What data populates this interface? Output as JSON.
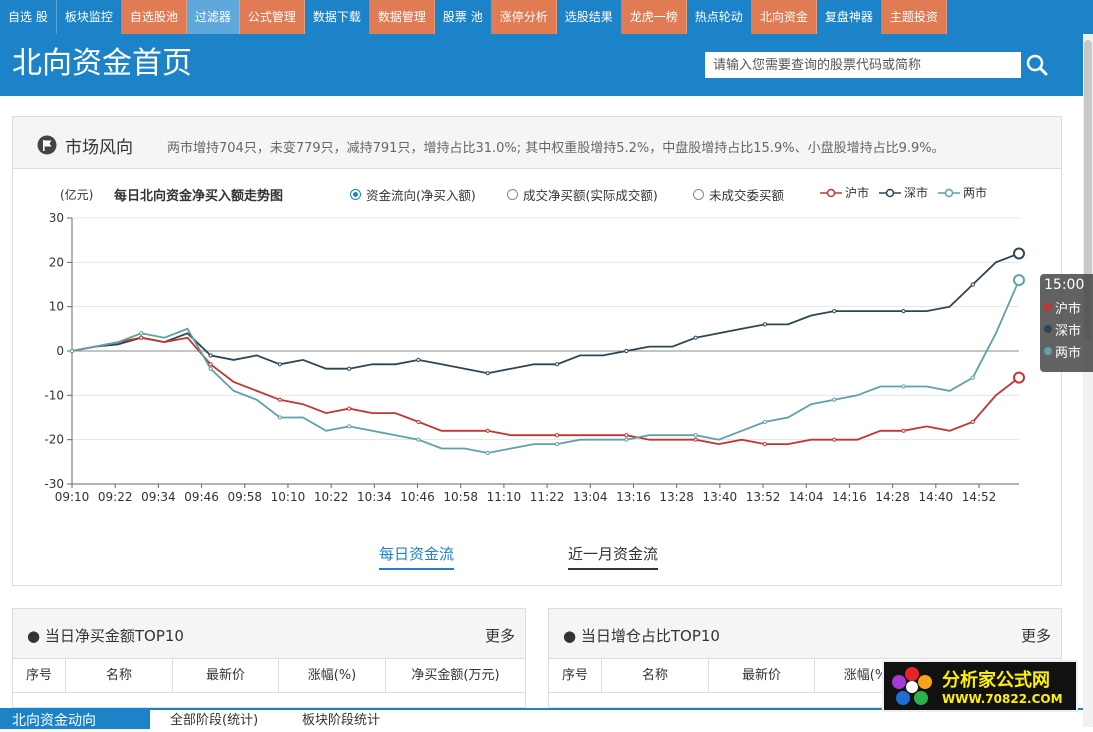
{
  "nav": {
    "tabs": [
      {
        "label": "自选 股",
        "style": "blue"
      },
      {
        "label": "板块监控",
        "style": "blue"
      },
      {
        "label": "自选股池",
        "style": "orange"
      },
      {
        "label": "过滤器",
        "style": "light"
      },
      {
        "label": "公式管理",
        "style": "orange"
      },
      {
        "label": "数据下载",
        "style": "blue"
      },
      {
        "label": "数据管理",
        "style": "orange"
      },
      {
        "label": "股票 池",
        "style": "blue"
      },
      {
        "label": "涨停分析",
        "style": "orange"
      },
      {
        "label": "选股结果",
        "style": "blue"
      },
      {
        "label": "龙虎一榜",
        "style": "orange"
      },
      {
        "label": "热点轮动",
        "style": "blue"
      },
      {
        "label": "北向资金",
        "style": "orange"
      },
      {
        "label": "复盘神器",
        "style": "blue"
      },
      {
        "label": "主题投资",
        "style": "orange"
      }
    ]
  },
  "header": {
    "title": "北向资金首页",
    "search_placeholder": "请输入您需要查询的股票代码或简称"
  },
  "market": {
    "title": "市场风向",
    "summary": "两市增持704只，未变779只，减持791只，增持占比31.0%; 其中权重股增持5.2%，中盘股增持占比15.9%、小盘股增持占比9.9%。"
  },
  "chart_controls": {
    "radios": [
      {
        "label": "资金流向(净买入额)",
        "selected": true
      },
      {
        "label": "成交净买额(实际成交额)",
        "selected": false
      },
      {
        "label": "未成交委买额",
        "selected": false
      }
    ]
  },
  "colors": {
    "sh": "#c23531",
    "sz": "#2f4554",
    "both": "#61a0a8",
    "brand": "#1d83c9",
    "accent": "#e07b53"
  },
  "chart_data": {
    "type": "line",
    "title": "每日北向资金净买入额走势图",
    "ylabel": "(亿元)",
    "xlabel": "",
    "ylim": [
      -30,
      30
    ],
    "yticks": [
      30,
      20,
      10,
      0,
      -10,
      -20,
      -30
    ],
    "x_labels": [
      "09:10",
      "09:22",
      "09:34",
      "09:46",
      "09:58",
      "10:10",
      "10:22",
      "10:34",
      "10:46",
      "10:58",
      "11:10",
      "11:22",
      "13:04",
      "13:16",
      "13:28",
      "13:40",
      "13:52",
      "14:04",
      "14:16",
      "14:28",
      "14:40",
      "14:52"
    ],
    "legend": [
      {
        "name": "沪市",
        "color": "#c23531"
      },
      {
        "name": "深市",
        "color": "#2f4554"
      },
      {
        "name": "两市",
        "color": "#61a0a8"
      }
    ],
    "series": [
      {
        "name": "深市",
        "color": "#2f4554",
        "values": [
          0,
          1,
          1.5,
          3,
          2,
          4,
          -1,
          -2,
          -1,
          -3,
          -2,
          -4,
          -4,
          -3,
          -3,
          -2,
          -3,
          -4,
          -5,
          -4,
          -3,
          -3,
          -1,
          -1,
          0,
          1,
          1,
          3,
          4,
          5,
          6,
          6,
          8,
          9,
          9,
          9,
          9,
          9,
          10,
          15,
          20,
          22
        ]
      },
      {
        "name": "沪市",
        "color": "#c23531",
        "values": [
          0,
          1,
          2,
          3,
          2,
          3,
          -3,
          -7,
          -9,
          -11,
          -12,
          -14,
          -13,
          -14,
          -14,
          -16,
          -18,
          -18,
          -18,
          -19,
          -19,
          -19,
          -19,
          -19,
          -19,
          -20,
          -20,
          -20,
          -21,
          -20,
          -21,
          -21,
          -20,
          -20,
          -20,
          -18,
          -18,
          -17,
          -18,
          -16,
          -10,
          -6
        ]
      },
      {
        "name": "两市",
        "color": "#61a0a8",
        "values": [
          0,
          1,
          2,
          4,
          3,
          5,
          -4,
          -9,
          -11,
          -15,
          -15,
          -18,
          -17,
          -18,
          -19,
          -20,
          -22,
          -22,
          -23,
          -22,
          -21,
          -21,
          -20,
          -20,
          -20,
          -19,
          -19,
          -19,
          -20,
          -18,
          -16,
          -15,
          -12,
          -11,
          -10,
          -8,
          -8,
          -8,
          -9,
          -6,
          4,
          16
        ]
      }
    ],
    "tooltip": {
      "time": "15:00",
      "labels": [
        "沪市",
        "深市",
        "两市"
      ]
    }
  },
  "flow_tabs": {
    "active": "每日资金流",
    "other": "近一月资金流"
  },
  "tables": {
    "left": {
      "title": "当日净买金额TOP10",
      "more": "更多",
      "columns": [
        "序号",
        "名称",
        "最新价",
        "涨幅(%)",
        "净买金额(万元)"
      ]
    },
    "right": {
      "title": "当日增仓占比TOP10",
      "more": "更多",
      "columns": [
        "序号",
        "名称",
        "最新价",
        "涨幅(%)"
      ]
    }
  },
  "bottom": {
    "title": "北向资金动向",
    "tabs": [
      "全部阶段(统计)",
      "板块阶段统计"
    ]
  },
  "watermark": {
    "cn": "分析家公式网",
    "url": "WWW.70822.COM"
  }
}
